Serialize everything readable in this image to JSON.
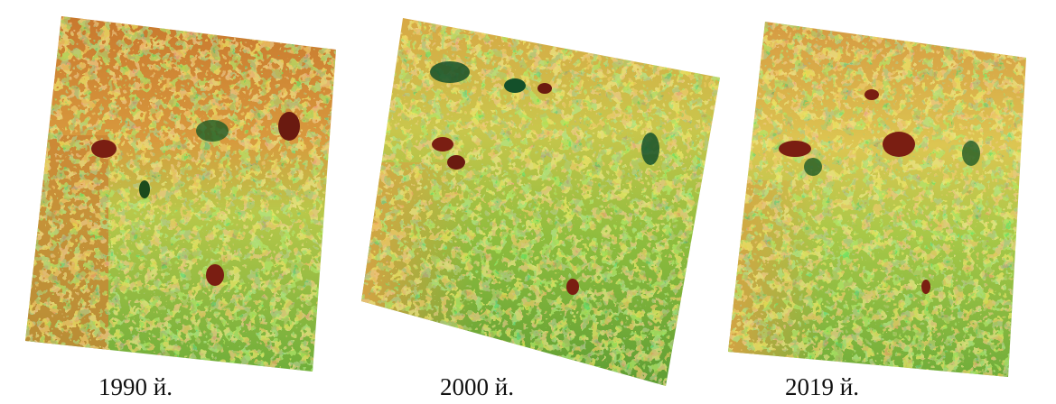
{
  "maps": [
    {
      "caption": "1990 й."
    },
    {
      "caption": "2000 й."
    },
    {
      "caption": "2019 й."
    }
  ]
}
